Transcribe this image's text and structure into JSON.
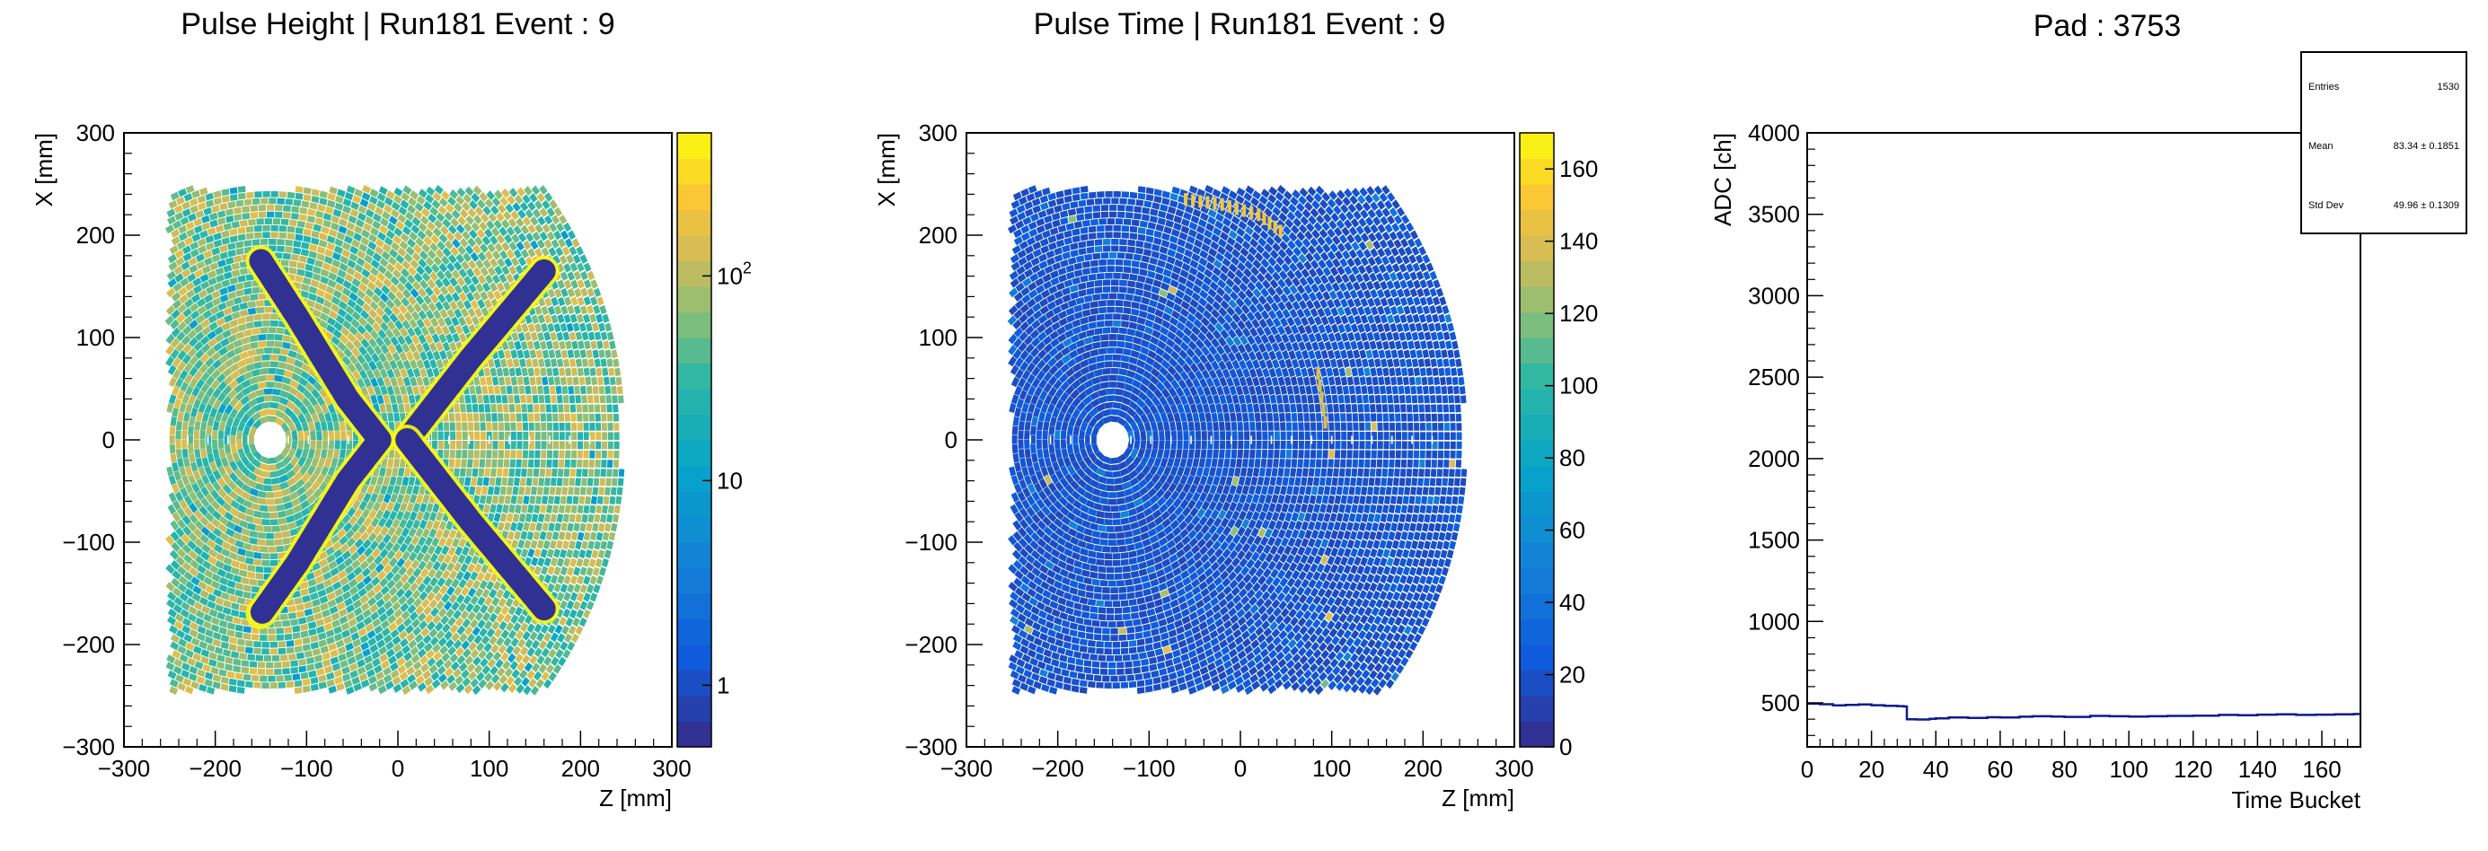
{
  "chart_data": [
    {
      "type": "heatmap",
      "title": "Pulse Height | Run181 Event : 9",
      "xlabel": "Z [mm]",
      "ylabel": "X [mm]",
      "xlim": [
        -300,
        300
      ],
      "ylim": [
        -300,
        300
      ],
      "x_ticks": [
        "−300",
        "−200",
        "−100",
        "0",
        "100",
        "200",
        "300"
      ],
      "y_ticks": [
        "−300",
        "−200",
        "−100",
        "0",
        "100",
        "200",
        "300"
      ],
      "color_scale": "log",
      "colorbar_ticks": [
        "1",
        "10",
        "10²"
      ],
      "colorbar_range": [
        0.5,
        500
      ],
      "pad_plane": {
        "center": [
          -140,
          0
        ],
        "inner_radius": 10,
        "outer_radius": 390,
        "z_min": -250,
        "z_max": 245
      },
      "background_value": 40,
      "tracks": [
        {
          "points": [
            [
              -150,
              175
            ],
            [
              -110,
              120
            ],
            [
              -55,
              40
            ],
            [
              -20,
              0
            ],
            [
              -55,
              -40
            ],
            [
              -110,
              -120
            ],
            [
              -150,
              -170
            ]
          ],
          "value": 1
        },
        {
          "points": [
            [
              160,
              165
            ],
            [
              80,
              80
            ],
            [
              10,
              0
            ]
          ],
          "value": 1
        },
        {
          "points": [
            [
              10,
              0
            ],
            [
              80,
              -80
            ],
            [
              160,
              -165
            ]
          ],
          "value": 1
        }
      ]
    },
    {
      "type": "heatmap",
      "title": "Pulse Time | Run181 Event : 9",
      "xlabel": "Z [mm]",
      "ylabel": "X [mm]",
      "xlim": [
        -300,
        300
      ],
      "ylim": [
        -300,
        300
      ],
      "x_ticks": [
        "−300",
        "−200",
        "−100",
        "0",
        "100",
        "200",
        "300"
      ],
      "y_ticks": [
        "−300",
        "−200",
        "−100",
        "0",
        "100",
        "200",
        "300"
      ],
      "color_scale": "linear",
      "colorbar_ticks": [
        "0",
        "20",
        "40",
        "60",
        "80",
        "100",
        "120",
        "140",
        "160"
      ],
      "colorbar_range": [
        0,
        170
      ],
      "pad_plane": {
        "center": [
          -140,
          0
        ],
        "inner_radius": 10,
        "outer_radius": 390,
        "z_min": -250,
        "z_max": 245
      },
      "background_value": 5,
      "highlights": [
        {
          "points": [
            [
              -60,
              235
            ],
            [
              -20,
              230
            ],
            [
              20,
              220
            ],
            [
              50,
              200
            ]
          ],
          "value": 150
        },
        {
          "points": [
            [
              85,
              65
            ],
            [
              95,
              5
            ]
          ],
          "value": 140
        }
      ]
    },
    {
      "type": "line",
      "title": "Pad : 3753",
      "xlabel": "Time Bucket",
      "ylabel": "ADC [ch]",
      "xlim": [
        0,
        172
      ],
      "ylim": [
        230,
        4000
      ],
      "x_ticks": [
        "0",
        "20",
        "40",
        "60",
        "80",
        "100",
        "120",
        "140",
        "160"
      ],
      "y_ticks": [
        "500",
        "1000",
        "1500",
        "2000",
        "2500",
        "3000",
        "3500",
        "4000"
      ],
      "series": [
        {
          "x": [
            0,
            4,
            8,
            12,
            16,
            20,
            24,
            28,
            30,
            31,
            34,
            38,
            40,
            44,
            50,
            56,
            60,
            66,
            70,
            76,
            80,
            88,
            94,
            100,
            106,
            112,
            120,
            128,
            134,
            140,
            146,
            152,
            158,
            164,
            170,
            172
          ],
          "y": [
            495,
            492,
            485,
            488,
            490,
            486,
            482,
            480,
            478,
            400,
            398,
            402,
            405,
            410,
            408,
            412,
            410,
            415,
            418,
            416,
            414,
            420,
            418,
            416,
            418,
            420,
            422,
            426,
            424,
            428,
            430,
            426,
            428,
            430,
            432,
            430
          ]
        }
      ],
      "stats": {
        "rows": [
          {
            "label": "Entries",
            "value": "1530"
          },
          {
            "label": "Mean",
            "value": "83.34 ± 0.1851"
          },
          {
            "label": "Std Dev",
            "value": "49.96 ± 0.1309"
          }
        ]
      }
    }
  ]
}
